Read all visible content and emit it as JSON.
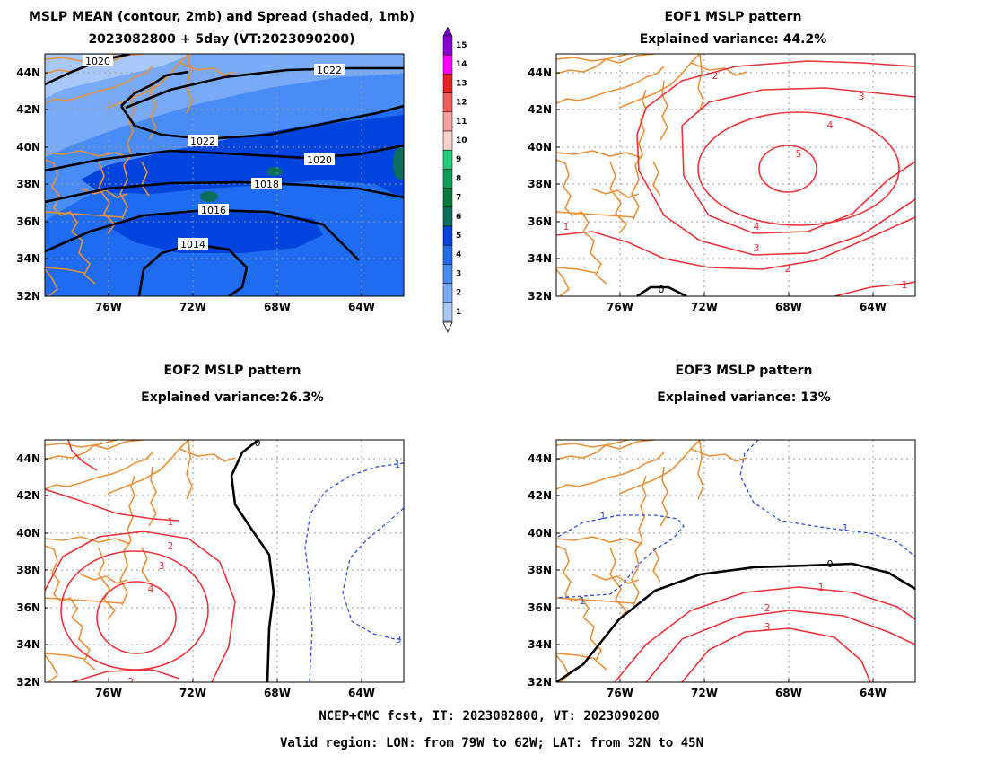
{
  "panels": {
    "p1": {
      "title1": "MSLP MEAN (contour, 2mb) and Spread (shaded, 1mb)",
      "title2": "2023082800 + 5day (VT:2023090200)",
      "contour_labels": [
        "1020",
        "1022",
        "1022",
        "1020",
        "1018",
        "1016",
        "1014"
      ]
    },
    "p2": {
      "title1": "EOF1 MSLP pattern",
      "title2": "Explained variance: 44.2%",
      "contour_labels": [
        "2",
        "3",
        "4",
        "5",
        "4",
        "3",
        "2",
        "1",
        "1",
        "0"
      ]
    },
    "p3": {
      "title1": "EOF2 MSLP pattern",
      "title2": "Explained variance:26.3%",
      "contour_labels": [
        "1",
        "2",
        "3",
        "4",
        "0",
        "1",
        "3",
        "2"
      ]
    },
    "p4": {
      "title1": "EOF3 MSLP pattern",
      "title2": "Explained variance: 13%",
      "contour_labels": [
        "1",
        "1",
        "1",
        "0",
        "1",
        "2",
        "3"
      ]
    }
  },
  "axes": {
    "lat_ticks": [
      "44N",
      "42N",
      "40N",
      "38N",
      "36N",
      "34N",
      "32N"
    ],
    "lon_ticks": [
      "76W",
      "72W",
      "68W",
      "64W"
    ]
  },
  "colorbar": {
    "labels": [
      "15",
      "14",
      "13",
      "12",
      "11",
      "10",
      "9",
      "8",
      "7",
      "6",
      "5",
      "4",
      "3",
      "2",
      "1"
    ],
    "colors": [
      "#8c00d4",
      "#ff00ff",
      "#e82323",
      "#f55a5a",
      "#faa0a0",
      "#fbd0c8",
      "#1fcc7a",
      "#09a05a",
      "#007d3a",
      "#0a6e5a",
      "#0044dd",
      "#1f6cf0",
      "#4a8cf5",
      "#78aaf8",
      "#a8c8fa"
    ]
  },
  "footer": {
    "line1": "NCEP+CMC fcst, IT: 2023082800, VT: 2023090200",
    "line2": "Valid region: LON: from 79W to 62W; LAT: from 32N to 45N"
  },
  "colors": {
    "positive_contour": "#e8333a",
    "negative_contour": "#2a4fd8",
    "zero_contour": "#000000",
    "coastline": "#e8913a",
    "spread_shading": [
      "#a8c8fa",
      "#78aaf8",
      "#4a8cf5",
      "#1f6cf0",
      "#0044dd",
      "#0a6e5a"
    ]
  }
}
